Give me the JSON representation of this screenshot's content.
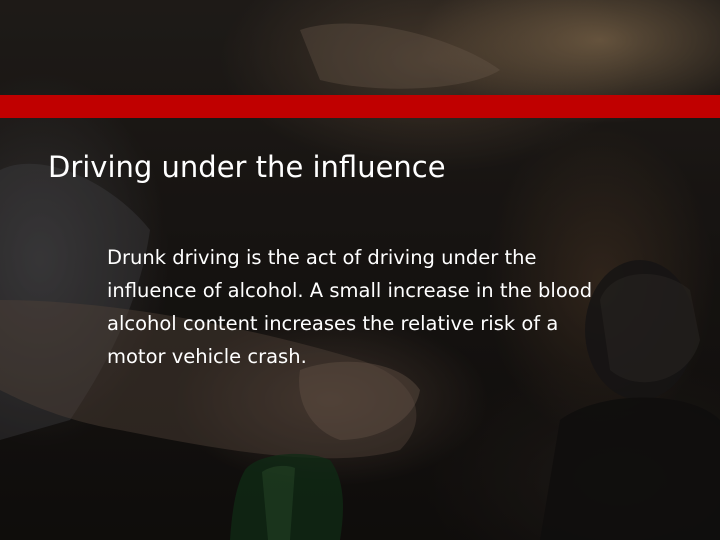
{
  "slide": {
    "title": "Driving under the influence",
    "body": "Drunk driving is the act of driving under the influence of alcohol. A small increase in the blood alcohol content increases the relative risk of a motor vehicle crash."
  },
  "colors": {
    "accent_band": "#c00000",
    "text": "#ffffff",
    "background": "#1e1a17"
  }
}
